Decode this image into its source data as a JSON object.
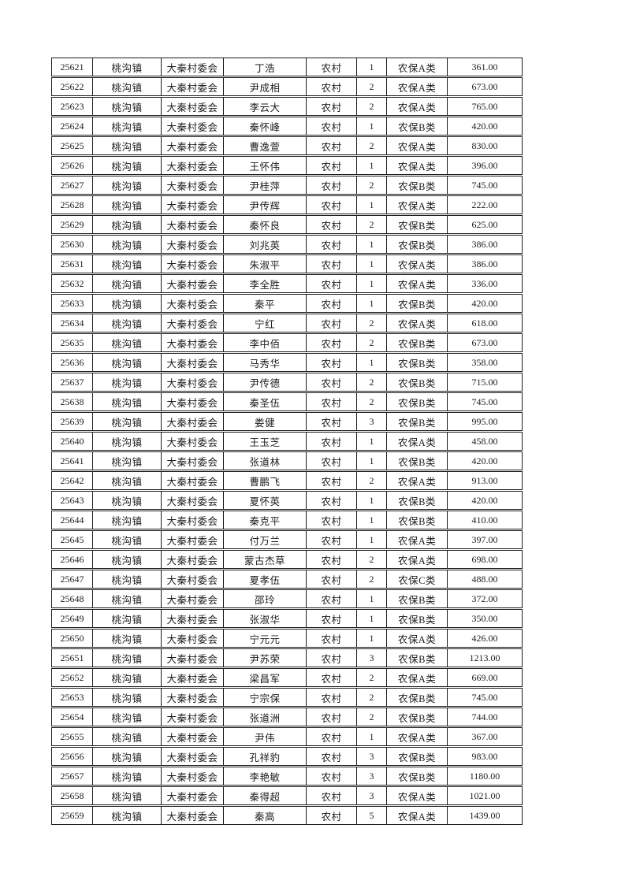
{
  "page": {
    "background": "#ffffff",
    "border_color": "#1c1c1c",
    "text_color": "#1c1c1c"
  },
  "table": {
    "column_keys": [
      "id",
      "town",
      "village",
      "name",
      "residence",
      "count",
      "category",
      "amount"
    ],
    "rows": [
      {
        "id": "25621",
        "town": "桃沟镇",
        "village": "大秦村委会",
        "name": "丁浩",
        "residence": "农村",
        "count": "1",
        "category": "农保A类",
        "amount": "361.00"
      },
      {
        "id": "25622",
        "town": "桃沟镇",
        "village": "大秦村委会",
        "name": "尹成相",
        "residence": "农村",
        "count": "2",
        "category": "农保A类",
        "amount": "673.00"
      },
      {
        "id": "25623",
        "town": "桃沟镇",
        "village": "大秦村委会",
        "name": "李云大",
        "residence": "农村",
        "count": "2",
        "category": "农保A类",
        "amount": "765.00"
      },
      {
        "id": "25624",
        "town": "桃沟镇",
        "village": "大秦村委会",
        "name": "秦怀峰",
        "residence": "农村",
        "count": "1",
        "category": "农保B类",
        "amount": "420.00"
      },
      {
        "id": "25625",
        "town": "桃沟镇",
        "village": "大秦村委会",
        "name": "曹逸萱",
        "residence": "农村",
        "count": "2",
        "category": "农保A类",
        "amount": "830.00"
      },
      {
        "id": "25626",
        "town": "桃沟镇",
        "village": "大秦村委会",
        "name": "王怀伟",
        "residence": "农村",
        "count": "1",
        "category": "农保A类",
        "amount": "396.00"
      },
      {
        "id": "25627",
        "town": "桃沟镇",
        "village": "大秦村委会",
        "name": "尹桂萍",
        "residence": "农村",
        "count": "2",
        "category": "农保B类",
        "amount": "745.00"
      },
      {
        "id": "25628",
        "town": "桃沟镇",
        "village": "大秦村委会",
        "name": "尹传辉",
        "residence": "农村",
        "count": "1",
        "category": "农保A类",
        "amount": "222.00"
      },
      {
        "id": "25629",
        "town": "桃沟镇",
        "village": "大秦村委会",
        "name": "秦怀良",
        "residence": "农村",
        "count": "2",
        "category": "农保B类",
        "amount": "625.00"
      },
      {
        "id": "25630",
        "town": "桃沟镇",
        "village": "大秦村委会",
        "name": "刘兆英",
        "residence": "农村",
        "count": "1",
        "category": "农保B类",
        "amount": "386.00"
      },
      {
        "id": "25631",
        "town": "桃沟镇",
        "village": "大秦村委会",
        "name": "朱淑平",
        "residence": "农村",
        "count": "1",
        "category": "农保A类",
        "amount": "386.00"
      },
      {
        "id": "25632",
        "town": "桃沟镇",
        "village": "大秦村委会",
        "name": "李全胜",
        "residence": "农村",
        "count": "1",
        "category": "农保A类",
        "amount": "336.00"
      },
      {
        "id": "25633",
        "town": "桃沟镇",
        "village": "大秦村委会",
        "name": "秦平",
        "residence": "农村",
        "count": "1",
        "category": "农保B类",
        "amount": "420.00"
      },
      {
        "id": "25634",
        "town": "桃沟镇",
        "village": "大秦村委会",
        "name": "宁红",
        "residence": "农村",
        "count": "2",
        "category": "农保A类",
        "amount": "618.00"
      },
      {
        "id": "25635",
        "town": "桃沟镇",
        "village": "大秦村委会",
        "name": "李中佰",
        "residence": "农村",
        "count": "2",
        "category": "农保B类",
        "amount": "673.00"
      },
      {
        "id": "25636",
        "town": "桃沟镇",
        "village": "大秦村委会",
        "name": "马秀华",
        "residence": "农村",
        "count": "1",
        "category": "农保B类",
        "amount": "358.00"
      },
      {
        "id": "25637",
        "town": "桃沟镇",
        "village": "大秦村委会",
        "name": "尹传德",
        "residence": "农村",
        "count": "2",
        "category": "农保B类",
        "amount": "715.00"
      },
      {
        "id": "25638",
        "town": "桃沟镇",
        "village": "大秦村委会",
        "name": "秦圣伍",
        "residence": "农村",
        "count": "2",
        "category": "农保B类",
        "amount": "745.00"
      },
      {
        "id": "25639",
        "town": "桃沟镇",
        "village": "大秦村委会",
        "name": "娄健",
        "residence": "农村",
        "count": "3",
        "category": "农保B类",
        "amount": "995.00"
      },
      {
        "id": "25640",
        "town": "桃沟镇",
        "village": "大秦村委会",
        "name": "王玉芝",
        "residence": "农村",
        "count": "1",
        "category": "农保A类",
        "amount": "458.00"
      },
      {
        "id": "25641",
        "town": "桃沟镇",
        "village": "大秦村委会",
        "name": "张道林",
        "residence": "农村",
        "count": "1",
        "category": "农保B类",
        "amount": "420.00"
      },
      {
        "id": "25642",
        "town": "桃沟镇",
        "village": "大秦村委会",
        "name": "曹鹏飞",
        "residence": "农村",
        "count": "2",
        "category": "农保A类",
        "amount": "913.00"
      },
      {
        "id": "25643",
        "town": "桃沟镇",
        "village": "大秦村委会",
        "name": "夏怀英",
        "residence": "农村",
        "count": "1",
        "category": "农保B类",
        "amount": "420.00"
      },
      {
        "id": "25644",
        "town": "桃沟镇",
        "village": "大秦村委会",
        "name": "秦克平",
        "residence": "农村",
        "count": "1",
        "category": "农保B类",
        "amount": "410.00"
      },
      {
        "id": "25645",
        "town": "桃沟镇",
        "village": "大秦村委会",
        "name": "付万兰",
        "residence": "农村",
        "count": "1",
        "category": "农保A类",
        "amount": "397.00"
      },
      {
        "id": "25646",
        "town": "桃沟镇",
        "village": "大秦村委会",
        "name": "蒙古杰草",
        "residence": "农村",
        "count": "2",
        "category": "农保A类",
        "amount": "698.00"
      },
      {
        "id": "25647",
        "town": "桃沟镇",
        "village": "大秦村委会",
        "name": "夏孝伍",
        "residence": "农村",
        "count": "2",
        "category": "农保C类",
        "amount": "488.00"
      },
      {
        "id": "25648",
        "town": "桃沟镇",
        "village": "大秦村委会",
        "name": "邵玲",
        "residence": "农村",
        "count": "1",
        "category": "农保B类",
        "amount": "372.00"
      },
      {
        "id": "25649",
        "town": "桃沟镇",
        "village": "大秦村委会",
        "name": "张淑华",
        "residence": "农村",
        "count": "1",
        "category": "农保B类",
        "amount": "350.00"
      },
      {
        "id": "25650",
        "town": "桃沟镇",
        "village": "大秦村委会",
        "name": "宁元元",
        "residence": "农村",
        "count": "1",
        "category": "农保A类",
        "amount": "426.00"
      },
      {
        "id": "25651",
        "town": "桃沟镇",
        "village": "大秦村委会",
        "name": "尹苏荣",
        "residence": "农村",
        "count": "3",
        "category": "农保B类",
        "amount": "1213.00"
      },
      {
        "id": "25652",
        "town": "桃沟镇",
        "village": "大秦村委会",
        "name": "梁昌军",
        "residence": "农村",
        "count": "2",
        "category": "农保A类",
        "amount": "669.00"
      },
      {
        "id": "25653",
        "town": "桃沟镇",
        "village": "大秦村委会",
        "name": "宁宗保",
        "residence": "农村",
        "count": "2",
        "category": "农保B类",
        "amount": "745.00"
      },
      {
        "id": "25654",
        "town": "桃沟镇",
        "village": "大秦村委会",
        "name": "张道洲",
        "residence": "农村",
        "count": "2",
        "category": "农保B类",
        "amount": "744.00"
      },
      {
        "id": "25655",
        "town": "桃沟镇",
        "village": "大秦村委会",
        "name": "尹伟",
        "residence": "农村",
        "count": "1",
        "category": "农保A类",
        "amount": "367.00"
      },
      {
        "id": "25656",
        "town": "桃沟镇",
        "village": "大秦村委会",
        "name": "孔祥豹",
        "residence": "农村",
        "count": "3",
        "category": "农保B类",
        "amount": "983.00"
      },
      {
        "id": "25657",
        "town": "桃沟镇",
        "village": "大秦村委会",
        "name": "李艳敏",
        "residence": "农村",
        "count": "3",
        "category": "农保B类",
        "amount": "1180.00"
      },
      {
        "id": "25658",
        "town": "桃沟镇",
        "village": "大秦村委会",
        "name": "秦得超",
        "residence": "农村",
        "count": "3",
        "category": "农保A类",
        "amount": "1021.00"
      },
      {
        "id": "25659",
        "town": "桃沟镇",
        "village": "大秦村委会",
        "name": "秦高",
        "residence": "农村",
        "count": "5",
        "category": "农保A类",
        "amount": "1439.00"
      }
    ]
  }
}
